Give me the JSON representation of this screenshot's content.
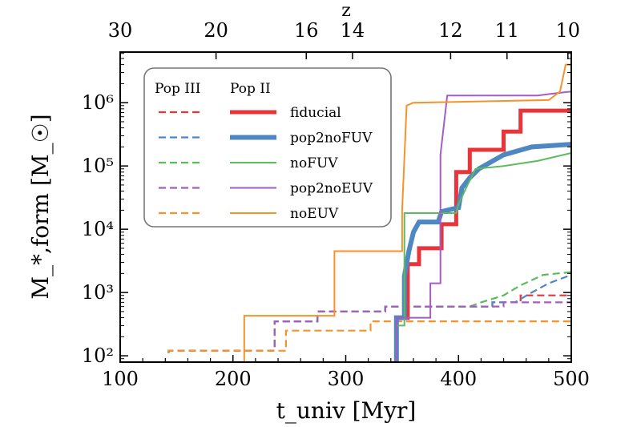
{
  "chart_data": {
    "type": "line",
    "xlabel": "t_univ [Myr]",
    "ylabel": "M_*,form [M_☉]",
    "top_axis_label": "z",
    "xlim": [
      100,
      500
    ],
    "ylim_log10": [
      1.9,
      6.8
    ],
    "yscale": "log",
    "x_ticks": [
      100,
      200,
      300,
      400,
      500
    ],
    "y_ticks": [
      {
        "exp": 2,
        "label": "10²"
      },
      {
        "exp": 3,
        "label": "10³"
      },
      {
        "exp": 4,
        "label": "10⁴"
      },
      {
        "exp": 5,
        "label": "10⁵"
      },
      {
        "exp": 6,
        "label": "10⁶"
      }
    ],
    "top_ticks": [
      {
        "t": 100,
        "label": "30"
      },
      {
        "t": 185,
        "label": "20"
      },
      {
        "t": 265,
        "label": "16"
      },
      {
        "t": 306,
        "label": "14"
      },
      {
        "t": 393,
        "label": "12"
      },
      {
        "t": 443,
        "label": "11"
      },
      {
        "t": 497,
        "label": "10"
      }
    ],
    "legend": {
      "header_left": "Pop III",
      "header_right": "Pop II",
      "placement": "upper-left"
    },
    "series": [
      {
        "name": "fiducial",
        "color": "#e8343b",
        "pop2_width": 5,
        "pop2": [
          [
            345,
            90
          ],
          [
            345,
            400
          ],
          [
            355,
            400
          ],
          [
            355,
            2800
          ],
          [
            365,
            2800
          ],
          [
            365,
            5000
          ],
          [
            385,
            5000
          ],
          [
            385,
            12000
          ],
          [
            398,
            12000
          ],
          [
            398,
            80000
          ],
          [
            410,
            80000
          ],
          [
            410,
            180000
          ],
          [
            440,
            180000
          ],
          [
            440,
            350000
          ],
          [
            455,
            350000
          ],
          [
            455,
            750000
          ],
          [
            500,
            750000
          ]
        ],
        "pop3": [
          [
            143,
            110
          ],
          [
            143,
            120
          ],
          [
            237,
            120
          ],
          [
            237,
            350
          ],
          [
            275,
            350
          ],
          [
            275,
            500
          ],
          [
            335,
            500
          ],
          [
            335,
            600
          ],
          [
            430,
            600
          ],
          [
            430,
            700
          ],
          [
            455,
            700
          ],
          [
            455,
            900
          ],
          [
            500,
            900
          ]
        ]
      },
      {
        "name": "pop2noFUV",
        "color": "#4e87c2",
        "pop2_width": 6,
        "pop2": [
          [
            345,
            80
          ],
          [
            345,
            400
          ],
          [
            352,
            400
          ],
          [
            352,
            1800
          ],
          [
            356,
            4500
          ],
          [
            360,
            9000
          ],
          [
            365,
            13000
          ],
          [
            382,
            13000
          ],
          [
            385,
            19000
          ],
          [
            400,
            22000
          ],
          [
            403,
            45000
          ],
          [
            410,
            65000
          ],
          [
            418,
            90000
          ],
          [
            440,
            150000
          ],
          [
            465,
            200000
          ],
          [
            500,
            220000
          ]
        ],
        "pop3": [
          [
            143,
            110
          ],
          [
            143,
            120
          ],
          [
            237,
            120
          ],
          [
            237,
            350
          ],
          [
            275,
            350
          ],
          [
            275,
            500
          ],
          [
            335,
            500
          ],
          [
            335,
            600
          ],
          [
            430,
            600
          ],
          [
            430,
            700
          ],
          [
            450,
            700
          ],
          [
            465,
            1000
          ],
          [
            480,
            1400
          ],
          [
            500,
            1900
          ]
        ]
      },
      {
        "name": "noFUV",
        "color": "#5cbb5c",
        "pop2_width": 2,
        "pop2": [
          [
            345,
            80
          ],
          [
            345,
            300
          ],
          [
            352,
            300
          ],
          [
            352,
            18000
          ],
          [
            398,
            18000
          ],
          [
            400,
            25000
          ],
          [
            408,
            50000
          ],
          [
            415,
            90000
          ],
          [
            440,
            100000
          ],
          [
            470,
            120000
          ],
          [
            500,
            160000
          ]
        ],
        "pop3": [
          [
            143,
            110
          ],
          [
            143,
            120
          ],
          [
            237,
            120
          ],
          [
            237,
            350
          ],
          [
            275,
            350
          ],
          [
            275,
            500
          ],
          [
            335,
            500
          ],
          [
            335,
            600
          ],
          [
            410,
            600
          ],
          [
            420,
            700
          ],
          [
            440,
            900
          ],
          [
            455,
            1300
          ],
          [
            475,
            1900
          ],
          [
            500,
            2100
          ]
        ]
      },
      {
        "name": "pop2noEUV",
        "color": "#a45dc2",
        "pop2_width": 2,
        "pop2": [
          [
            345,
            80
          ],
          [
            345,
            400
          ],
          [
            375,
            400
          ],
          [
            375,
            1400
          ],
          [
            384,
            1400
          ],
          [
            384,
            150000
          ],
          [
            390,
            1300000
          ],
          [
            470,
            1300000
          ],
          [
            485,
            1400000
          ],
          [
            500,
            1500000
          ]
        ],
        "pop3": [
          [
            143,
            110
          ],
          [
            143,
            120
          ],
          [
            237,
            120
          ],
          [
            237,
            350
          ],
          [
            275,
            350
          ],
          [
            275,
            500
          ],
          [
            335,
            500
          ],
          [
            335,
            600
          ],
          [
            440,
            600
          ],
          [
            440,
            700
          ],
          [
            500,
            700
          ]
        ]
      },
      {
        "name": "noEUV",
        "color": "#f7922b",
        "pop2_width": 2,
        "pop2": [
          [
            210,
            80
          ],
          [
            210,
            430
          ],
          [
            290,
            430
          ],
          [
            290,
            4500
          ],
          [
            350,
            4500
          ],
          [
            350,
            20000
          ],
          [
            354,
            900000
          ],
          [
            360,
            1000000
          ],
          [
            480,
            1100000
          ],
          [
            490,
            1500000
          ],
          [
            495,
            4000000
          ],
          [
            500,
            4000000
          ]
        ],
        "pop3": [
          [
            143,
            110
          ],
          [
            143,
            120
          ],
          [
            247,
            120
          ],
          [
            247,
            250
          ],
          [
            322,
            250
          ],
          [
            322,
            350
          ],
          [
            500,
            350
          ]
        ]
      }
    ]
  }
}
